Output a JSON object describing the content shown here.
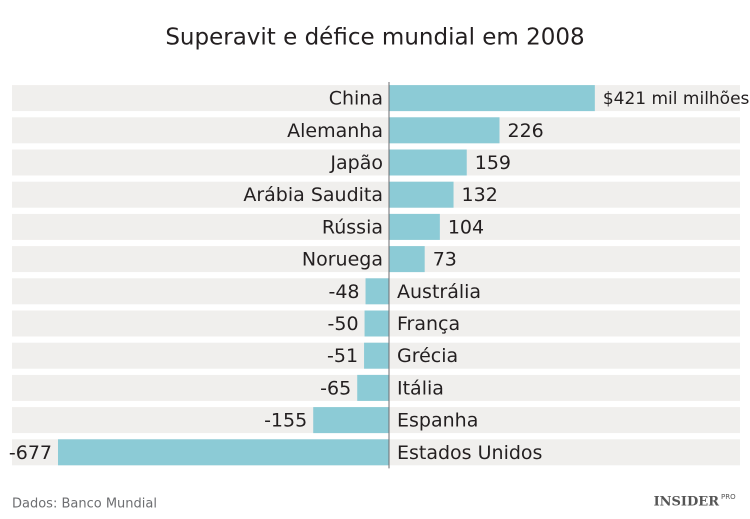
{
  "chart_data": {
    "type": "bar",
    "orientation": "horizontal",
    "title": "Superavit e défice mundial em 2008",
    "categories": [
      "China",
      "Alemanha",
      "Japão",
      "Arábia Saudita",
      "Rússia",
      "Noruega",
      "Austrália",
      "França",
      "Grécia",
      "Itália",
      "Espanha",
      "Estados Unidos"
    ],
    "values": [
      421,
      226,
      159,
      132,
      104,
      73,
      -48,
      -50,
      -51,
      -65,
      -155,
      -677
    ],
    "value_labels": [
      "$421 mil milhões",
      "226",
      "159",
      "132",
      "104",
      "73",
      "-48",
      "-50",
      "-51",
      "-65",
      "-155",
      "-677"
    ],
    "color": "#8ccbd6",
    "source": "Dados: Banco Mundial",
    "logo": "INSIDER",
    "logo_sup": "PRO"
  }
}
